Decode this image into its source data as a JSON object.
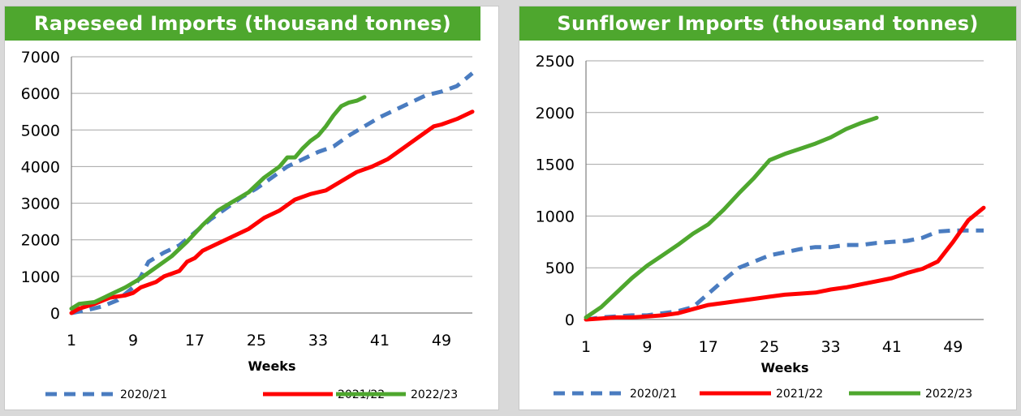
{
  "chart_data": [
    {
      "type": "line",
      "title": "Rapeseed Imports  (thousand tonnes)",
      "xlabel": "Weeks",
      "ylabel": "",
      "xlim": [
        1,
        53
      ],
      "ylim": [
        0,
        7000
      ],
      "x_ticks": [
        1,
        9,
        17,
        25,
        33,
        41,
        49
      ],
      "y_ticks": [
        0,
        1000,
        2000,
        3000,
        4000,
        5000,
        6000,
        7000
      ],
      "grid": true,
      "legend_position": "bottom",
      "series": [
        {
          "name": "2020/21",
          "color": "#4a7cc0",
          "dash": true,
          "x": [
            1,
            3,
            5,
            7,
            9,
            10,
            11,
            13,
            15,
            17,
            19,
            21,
            23,
            25,
            27,
            29,
            31,
            33,
            35,
            37,
            39,
            41,
            43,
            45,
            47,
            49,
            51,
            53
          ],
          "values": [
            0,
            80,
            180,
            350,
            700,
            1000,
            1400,
            1650,
            1850,
            2200,
            2550,
            2850,
            3150,
            3400,
            3700,
            4000,
            4200,
            4400,
            4550,
            4850,
            5100,
            5350,
            5550,
            5750,
            5950,
            6050,
            6200,
            6550
          ]
        },
        {
          "name": "2021/22",
          "color": "#ff0000",
          "dash": false,
          "x": [
            1,
            2,
            4,
            6,
            8,
            9,
            10,
            12,
            13,
            15,
            16,
            17,
            18,
            20,
            22,
            24,
            26,
            28,
            30,
            32,
            34,
            36,
            38,
            40,
            42,
            44,
            46,
            48,
            49,
            51,
            53
          ],
          "values": [
            0,
            120,
            250,
            420,
            480,
            550,
            700,
            850,
            1000,
            1150,
            1400,
            1500,
            1700,
            1900,
            2100,
            2300,
            2600,
            2800,
            3100,
            3250,
            3350,
            3600,
            3850,
            4000,
            4200,
            4500,
            4800,
            5100,
            5150,
            5300,
            5500
          ]
        },
        {
          "name": "2022/23",
          "color": "#4ea72e",
          "dash": false,
          "x": [
            1,
            2,
            4,
            6,
            8,
            10,
            12,
            14,
            16,
            18,
            20,
            22,
            24,
            26,
            28,
            29,
            30,
            31,
            32,
            33,
            34,
            35,
            36,
            37,
            38,
            39
          ],
          "values": [
            120,
            250,
            300,
            500,
            700,
            950,
            1250,
            1550,
            1950,
            2400,
            2800,
            3050,
            3300,
            3700,
            4000,
            4250,
            4250,
            4500,
            4700,
            4850,
            5100,
            5400,
            5650,
            5750,
            5800,
            5900
          ]
        }
      ]
    },
    {
      "type": "line",
      "title": "Sunflower Imports  (thousand tonnes)",
      "xlabel": "Weeks",
      "ylabel": "",
      "xlim": [
        1,
        53
      ],
      "ylim": [
        0,
        2500
      ],
      "x_ticks": [
        1,
        9,
        17,
        25,
        33,
        41,
        49
      ],
      "y_ticks": [
        0,
        500,
        1000,
        1500,
        2000,
        2500
      ],
      "grid": true,
      "legend_position": "bottom",
      "series": [
        {
          "name": "2020/21",
          "color": "#4a7cc0",
          "dash": true,
          "x": [
            1,
            3,
            5,
            7,
            9,
            11,
            13,
            15,
            17,
            19,
            21,
            23,
            25,
            27,
            29,
            31,
            33,
            35,
            37,
            39,
            41,
            43,
            45,
            47,
            49,
            51,
            53
          ],
          "values": [
            0,
            20,
            30,
            40,
            40,
            60,
            80,
            120,
            250,
            380,
            500,
            560,
            620,
            650,
            680,
            700,
            700,
            720,
            720,
            740,
            750,
            760,
            790,
            850,
            860,
            860,
            860
          ]
        },
        {
          "name": "2021/22",
          "color": "#ff0000",
          "dash": false,
          "x": [
            1,
            3,
            5,
            7,
            9,
            11,
            13,
            15,
            17,
            19,
            21,
            23,
            25,
            27,
            29,
            31,
            33,
            35,
            37,
            39,
            41,
            43,
            45,
            47,
            49,
            51,
            53
          ],
          "values": [
            0,
            10,
            20,
            20,
            30,
            40,
            60,
            100,
            140,
            160,
            180,
            200,
            220,
            240,
            250,
            260,
            290,
            310,
            340,
            370,
            400,
            450,
            490,
            560,
            750,
            960,
            1080
          ]
        },
        {
          "name": "2022/23",
          "color": "#4ea72e",
          "dash": false,
          "x": [
            1,
            3,
            5,
            7,
            9,
            11,
            13,
            15,
            17,
            19,
            21,
            23,
            25,
            27,
            29,
            31,
            33,
            35,
            37,
            39
          ],
          "values": [
            20,
            120,
            260,
            400,
            520,
            620,
            720,
            830,
            920,
            1060,
            1220,
            1370,
            1540,
            1600,
            1650,
            1700,
            1760,
            1840,
            1900,
            1950
          ]
        }
      ]
    }
  ]
}
